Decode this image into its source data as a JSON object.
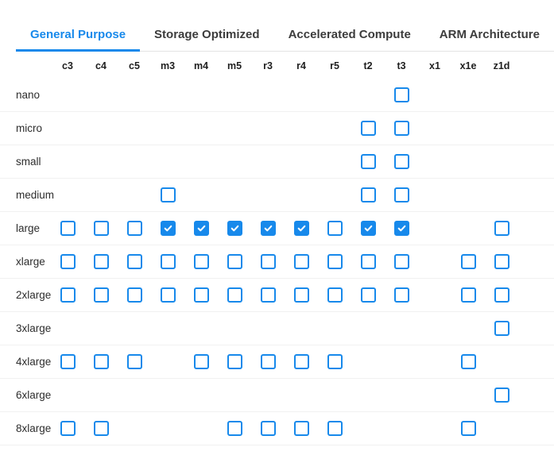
{
  "tabs": {
    "items": [
      {
        "label": "General Purpose",
        "active": true
      },
      {
        "label": "Storage Optimized",
        "active": false
      },
      {
        "label": "Accelerated Compute",
        "active": false
      },
      {
        "label": "ARM Architecture",
        "active": false
      }
    ]
  },
  "matrix": {
    "columns": [
      "c3",
      "c4",
      "c5",
      "m3",
      "m4",
      "m5",
      "r3",
      "r4",
      "r5",
      "t2",
      "t3",
      "x1",
      "x1e",
      "z1d"
    ],
    "cell_state_legend": {
      "0": "no-checkbox",
      "1": "unchecked",
      "2": "checked"
    },
    "rows": [
      {
        "label": "nano",
        "cells": [
          0,
          0,
          0,
          0,
          0,
          0,
          0,
          0,
          0,
          0,
          1,
          0,
          0,
          0
        ]
      },
      {
        "label": "micro",
        "cells": [
          0,
          0,
          0,
          0,
          0,
          0,
          0,
          0,
          0,
          1,
          1,
          0,
          0,
          0
        ]
      },
      {
        "label": "small",
        "cells": [
          0,
          0,
          0,
          0,
          0,
          0,
          0,
          0,
          0,
          1,
          1,
          0,
          0,
          0
        ]
      },
      {
        "label": "medium",
        "cells": [
          0,
          0,
          0,
          1,
          0,
          0,
          0,
          0,
          0,
          1,
          1,
          0,
          0,
          0
        ]
      },
      {
        "label": "large",
        "cells": [
          1,
          1,
          1,
          2,
          2,
          2,
          2,
          2,
          1,
          2,
          2,
          0,
          0,
          1
        ]
      },
      {
        "label": "xlarge",
        "cells": [
          1,
          1,
          1,
          1,
          1,
          1,
          1,
          1,
          1,
          1,
          1,
          0,
          1,
          1
        ]
      },
      {
        "label": "2xlarge",
        "cells": [
          1,
          1,
          1,
          1,
          1,
          1,
          1,
          1,
          1,
          1,
          1,
          0,
          1,
          1
        ]
      },
      {
        "label": "3xlarge",
        "cells": [
          0,
          0,
          0,
          0,
          0,
          0,
          0,
          0,
          0,
          0,
          0,
          0,
          0,
          1
        ]
      },
      {
        "label": "4xlarge",
        "cells": [
          1,
          1,
          1,
          0,
          1,
          1,
          1,
          1,
          1,
          0,
          0,
          0,
          1,
          0
        ]
      },
      {
        "label": "6xlarge",
        "cells": [
          0,
          0,
          0,
          0,
          0,
          0,
          0,
          0,
          0,
          0,
          0,
          0,
          0,
          1
        ]
      },
      {
        "label": "8xlarge",
        "cells": [
          1,
          1,
          0,
          0,
          0,
          1,
          1,
          1,
          1,
          0,
          0,
          0,
          1,
          0
        ]
      }
    ]
  },
  "colors": {
    "accent": "#1789eb",
    "active_tab_text": "#1789eb",
    "inactive_tab_text": "#3c3c3c",
    "checkbox_border": "#1789eb",
    "checkbox_checked_fill": "#1789eb",
    "checkmark": "#ffffff",
    "row_separator": "#f1f1f1",
    "tabbar_border": "#e4e4e4"
  }
}
